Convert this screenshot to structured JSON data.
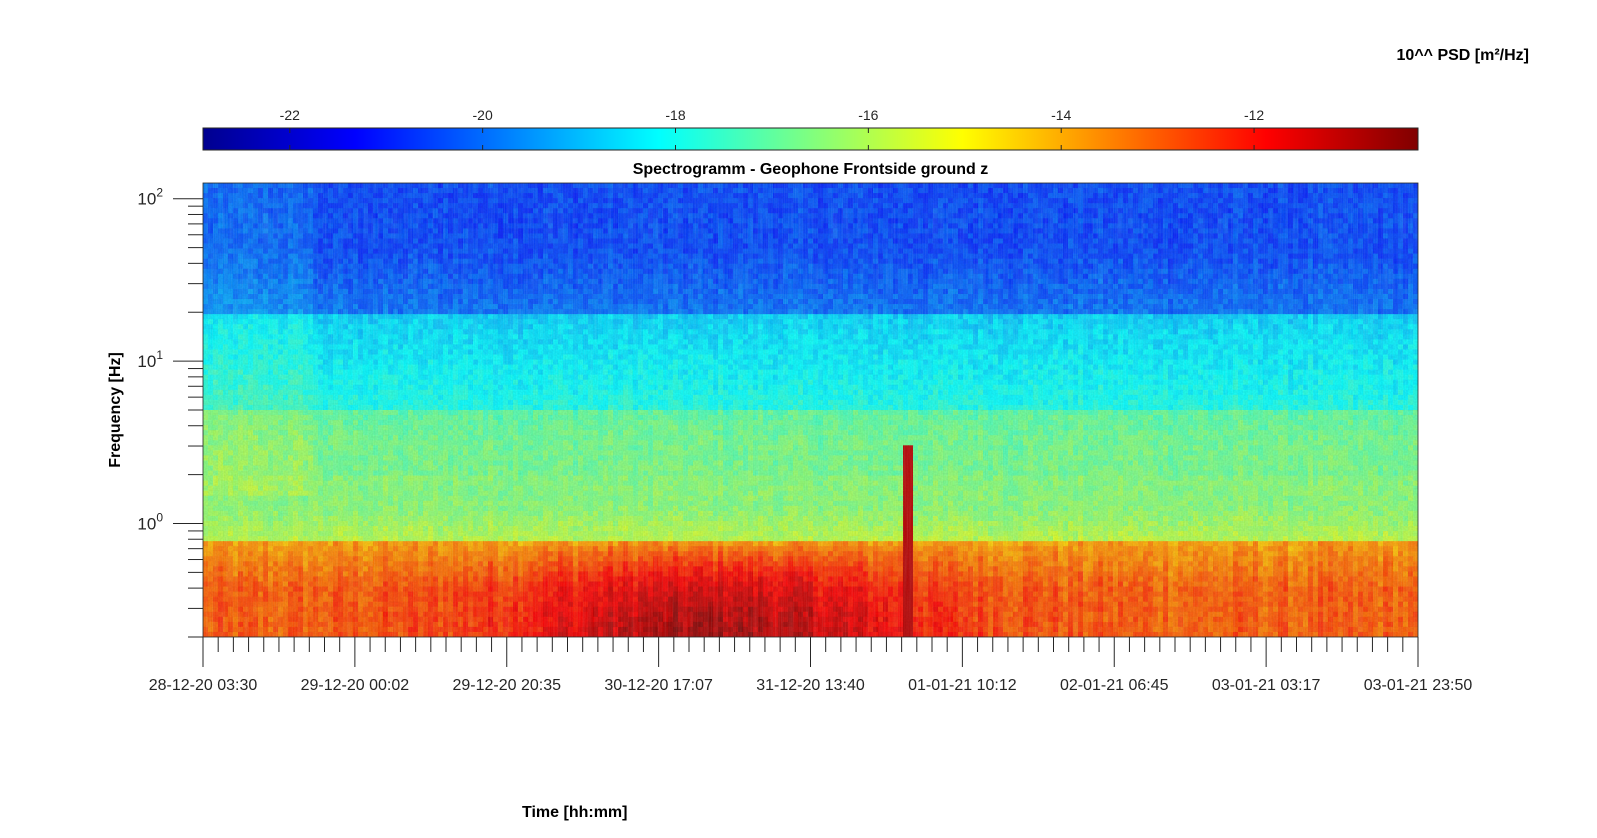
{
  "chart_data": {
    "type": "heatmap",
    "title": "Spectrogramm - Geophone Frontside ground z",
    "xlabel": "Time [hh:mm]",
    "ylabel": "Frequency [Hz]",
    "x_tick_labels": [
      "28-12-20 03:30",
      "29-12-20 00:02",
      "29-12-20 20:35",
      "30-12-20 17:07",
      "31-12-20 13:40",
      "01-01-21 10:12",
      "02-01-21 06:45",
      "03-01-21 03:17",
      "03-01-21 23:50"
    ],
    "y_scale": "log",
    "y_tick_labels": [
      {
        "base": "10",
        "exp": "0"
      },
      {
        "base": "10",
        "exp": "1"
      },
      {
        "base": "10",
        "exp": "2"
      }
    ],
    "ylim": [
      0.2,
      125
    ],
    "colormap": "jet",
    "colorbar": {
      "label": "10^^ PSD [m²/Hz]",
      "orientation": "horizontal",
      "location": "top",
      "range": [
        -22.9,
        -10.3
      ],
      "tick_values": [
        -22,
        -20,
        -18,
        -16,
        -14,
        -12
      ],
      "tick_labels": [
        "-22",
        "-20",
        "-18",
        "-16",
        "-14",
        "-12"
      ]
    },
    "frequency_bands_log10_psd": [
      {
        "freq_range_hz": [
          20,
          125
        ],
        "log10_psd": -20.5
      },
      {
        "freq_range_hz": [
          5,
          20
        ],
        "log10_psd": -18.3
      },
      {
        "freq_range_hz": [
          2,
          5
        ],
        "log10_psd": -16.8
      },
      {
        "freq_range_hz": [
          0.8,
          2
        ],
        "log10_psd": -16.5
      },
      {
        "freq_range_hz": [
          0.2,
          0.8
        ],
        "log10_psd": -13.0
      }
    ],
    "notable_events": [
      {
        "time": "01-01-21 00:00",
        "freq_range_hz": [
          0.2,
          3
        ],
        "log10_psd": -11.0,
        "description": "narrow vertical spike"
      },
      {
        "time": "30-12-20 22:00",
        "freq_range_hz": [
          0.2,
          0.35
        ],
        "log10_psd": -10.5,
        "description": "dark red low-frequency maximum"
      }
    ],
    "grid": false
  },
  "colors": {
    "jet": [
      "#00008f",
      "#0000ff",
      "#00ffff",
      "#ffff00",
      "#ff0000",
      "#800000"
    ]
  }
}
